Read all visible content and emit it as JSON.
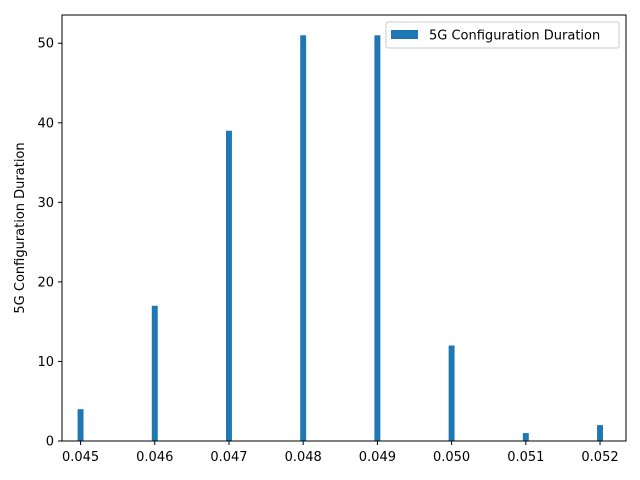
{
  "chart_data": {
    "type": "bar",
    "x": [
      0.045,
      0.046,
      0.047,
      0.048,
      0.049,
      0.05,
      0.051,
      0.052
    ],
    "x_tick_labels": [
      "0.045",
      "0.046",
      "0.047",
      "0.048",
      "0.049",
      "0.050",
      "0.051",
      "0.052"
    ],
    "values": [
      4,
      17,
      39,
      51,
      51,
      12,
      1,
      2
    ],
    "title": "",
    "xlabel": "",
    "ylabel": "5G Configuration Duration",
    "xlim": [
      0.04475,
      0.05235
    ],
    "ylim": [
      0,
      53.55
    ],
    "y_ticks": [
      0,
      10,
      20,
      30,
      40,
      50
    ],
    "y_tick_labels": [
      "0",
      "10",
      "20",
      "30",
      "40",
      "50"
    ],
    "bar_width": 8e-05,
    "series": [
      {
        "name": "5G Configuration Duration",
        "color": "#1f77b4"
      }
    ],
    "legend": {
      "position": "top-right",
      "entries": [
        "5G Configuration Duration"
      ]
    },
    "grid": false
  }
}
